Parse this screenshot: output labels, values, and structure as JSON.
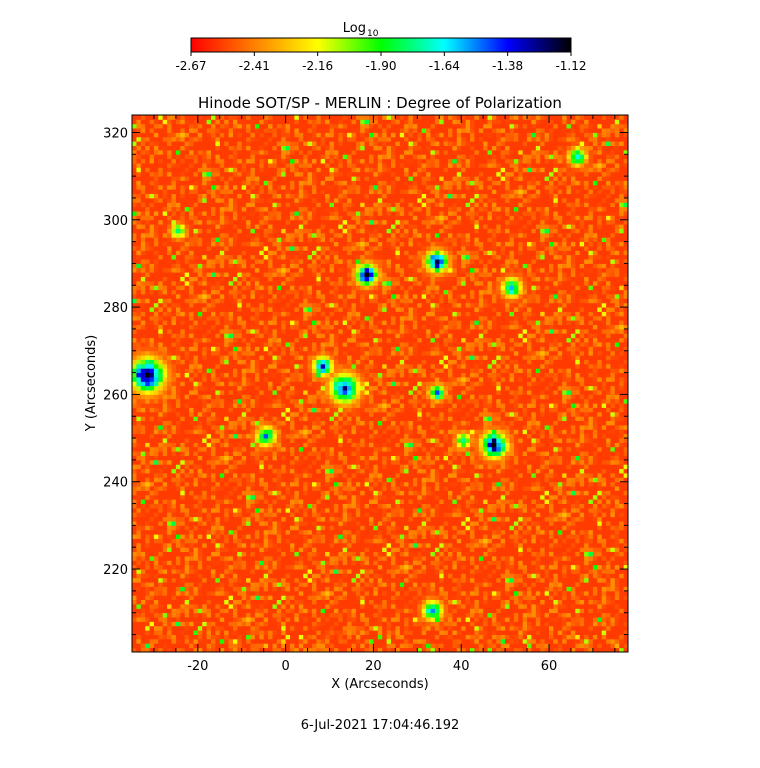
{
  "chart_data": {
    "type": "heatmap",
    "title": "Hinode SOT/SP - MERLIN : Degree of Polarization",
    "xlabel": "X (Arcseconds)",
    "ylabel": "Y (Arcseconds)",
    "xlim": [
      -35,
      78
    ],
    "ylim": [
      201,
      324
    ],
    "x_ticks": [
      -20,
      0,
      20,
      40,
      60
    ],
    "y_ticks": [
      220,
      240,
      260,
      280,
      300,
      320
    ],
    "colorbar": {
      "label_base": "Log",
      "label_sub": "10",
      "ticks": [
        "-2.67",
        "-2.41",
        "-2.16",
        "-1.90",
        "-1.64",
        "-1.38",
        "-1.12"
      ],
      "range": [
        -2.67,
        -1.12
      ],
      "colors": [
        "#ff0000",
        "#ff8000",
        "#ffff00",
        "#00ff00",
        "#00ffff",
        "#0000ff",
        "#000000"
      ]
    },
    "background_level": -2.55,
    "features": [
      {
        "x": -32,
        "y": 264,
        "r": 3.5,
        "level": -1.15
      },
      {
        "x": 13,
        "y": 261,
        "r": 3.0,
        "level": -1.35
      },
      {
        "x": 18,
        "y": 287,
        "r": 2.2,
        "level": -1.2
      },
      {
        "x": 34,
        "y": 290,
        "r": 2.2,
        "level": -1.2
      },
      {
        "x": 47,
        "y": 248,
        "r": 2.6,
        "level": -1.2
      },
      {
        "x": 34,
        "y": 260,
        "r": 1.6,
        "level": -1.45
      },
      {
        "x": 51,
        "y": 284,
        "r": 2.0,
        "level": -1.5
      },
      {
        "x": 33,
        "y": 210,
        "r": 2.0,
        "level": -1.5
      },
      {
        "x": 66,
        "y": 314,
        "r": 1.8,
        "level": -1.55
      },
      {
        "x": -5,
        "y": 250,
        "r": 2.0,
        "level": -1.55
      },
      {
        "x": 8,
        "y": 266,
        "r": 2.0,
        "level": -1.45
      },
      {
        "x": -25,
        "y": 297,
        "r": 1.5,
        "level": -1.75
      },
      {
        "x": 40,
        "y": 249,
        "r": 1.6,
        "level": -1.7
      }
    ],
    "timestamp": "6-Jul-2021 17:04:46.192"
  }
}
